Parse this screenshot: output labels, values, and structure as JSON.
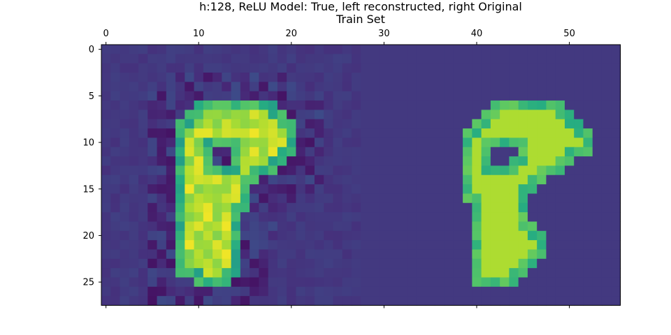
{
  "chart_data": {
    "type": "heatmap",
    "title": "h:128, ReLU Model: True, left reconstructed, right Original",
    "subtitle": "Train Set",
    "colormap": "viridis",
    "grid": false,
    "x_ticks_position": "top",
    "xlim": [
      -0.5,
      55.5
    ],
    "ylim": [
      27.5,
      -0.5
    ],
    "x_ticks": [
      0,
      10,
      20,
      30,
      40,
      50
    ],
    "y_ticks": [
      0,
      5,
      10,
      15,
      20,
      25
    ],
    "x_tick_labels": [
      "0",
      "10",
      "20",
      "30",
      "40",
      "50"
    ],
    "y_tick_labels": [
      "0",
      "5",
      "10",
      "15",
      "20",
      "25"
    ],
    "grid_size": {
      "rows": 28,
      "cols": 56
    },
    "description_of_value_scale": "0 = background, 1 = peak intensity",
    "original_digit_mask": [
      "............................",
      "............................",
      "............................",
      "............................",
      "............................",
      "............................",
      "..............########......",
      ".............##########.....",
      "............############....",
      "...........##############...",
      "...........##############...",
      "...........###...########...",
      "...........###..#######.....",
      "...........###########......",
      "...........#########........",
      "...........########.........",
      "...........#######..........",
      "............######..........",
      "............######..........",
      "............#######.........",
      "............########........",
      "............########........",
      "............########........",
      "............#######.........",
      "............######..........",
      "............#####...........",
      "............................",
      "............................"
    ],
    "reconstructed_digit_mask": [
      "............................",
      "............................",
      "............................",
      "............................",
      "............................",
      "............................",
      "..........#########.........",
      ".........###########........",
      "........#############.......",
      "........#############.......",
      "........#############.......",
      "........####..#######.......",
      "........####..######........",
      "........###########.........",
      "........#########...........",
      "........########............",
      "........########............",
      "........########............",
      "........#######.............",
      "........#######.............",
      "........#######.............",
      "........#######.............",
      "........#######.............",
      "........#######.............",
      "........#######.............",
      "..........####..............",
      "............................",
      "............................"
    ]
  }
}
